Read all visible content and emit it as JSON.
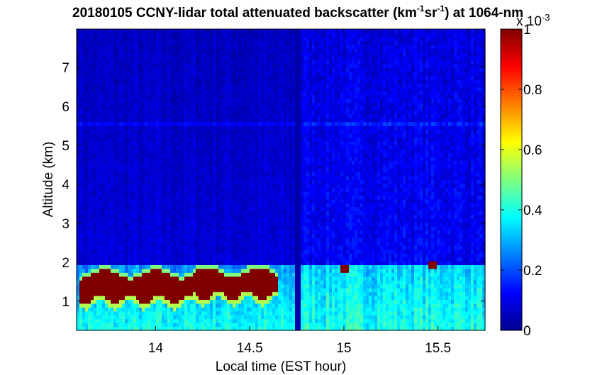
{
  "chart_data": {
    "type": "heatmap",
    "title_prefix": "20180105 CCNY-lidar total attenuated backscatter (km",
    "title_mid": "sr",
    "title_suffix": ") at 1064-nm",
    "title_sup": "-1",
    "xlabel": "Local time (EST hour)",
    "ylabel": "Altitude (km)",
    "xlim": [
      13.58,
      15.75
    ],
    "ylim": [
      0.25,
      7.98
    ],
    "xticks": [
      14,
      14.5,
      15,
      15.5
    ],
    "xtick_labels": [
      "14",
      "14.5",
      "15",
      "15.5"
    ],
    "yticks": [
      1,
      2,
      3,
      4,
      5,
      6,
      7
    ],
    "ytick_labels": [
      "1",
      "2",
      "3",
      "4",
      "5",
      "6",
      "7"
    ],
    "colorbar": {
      "min": 0,
      "max": 0.001,
      "ticks": [
        0,
        0.2,
        0.4,
        0.6,
        0.8,
        1
      ],
      "tick_labels": [
        "0",
        "0.2",
        "0.4",
        "0.6",
        "0.8",
        "1"
      ],
      "exponent_base": "x 10",
      "exponent": "-3",
      "colormap": "jet"
    },
    "features": {
      "data_gap_time": 14.76,
      "boundary_layer_top_km": 1.9,
      "aerosol_layer_km": 5.55,
      "cloud_layer": {
        "start": 13.6,
        "end": 14.65,
        "altitude_km": [
          1.05,
          1.8
        ],
        "value": 0.001
      },
      "cloud_spots": [
        {
          "time": 15.0,
          "altitude_km": 1.85,
          "value": 0.001
        },
        {
          "time": 15.47,
          "altitude_km": 1.95,
          "value": 0.001
        }
      ]
    }
  }
}
